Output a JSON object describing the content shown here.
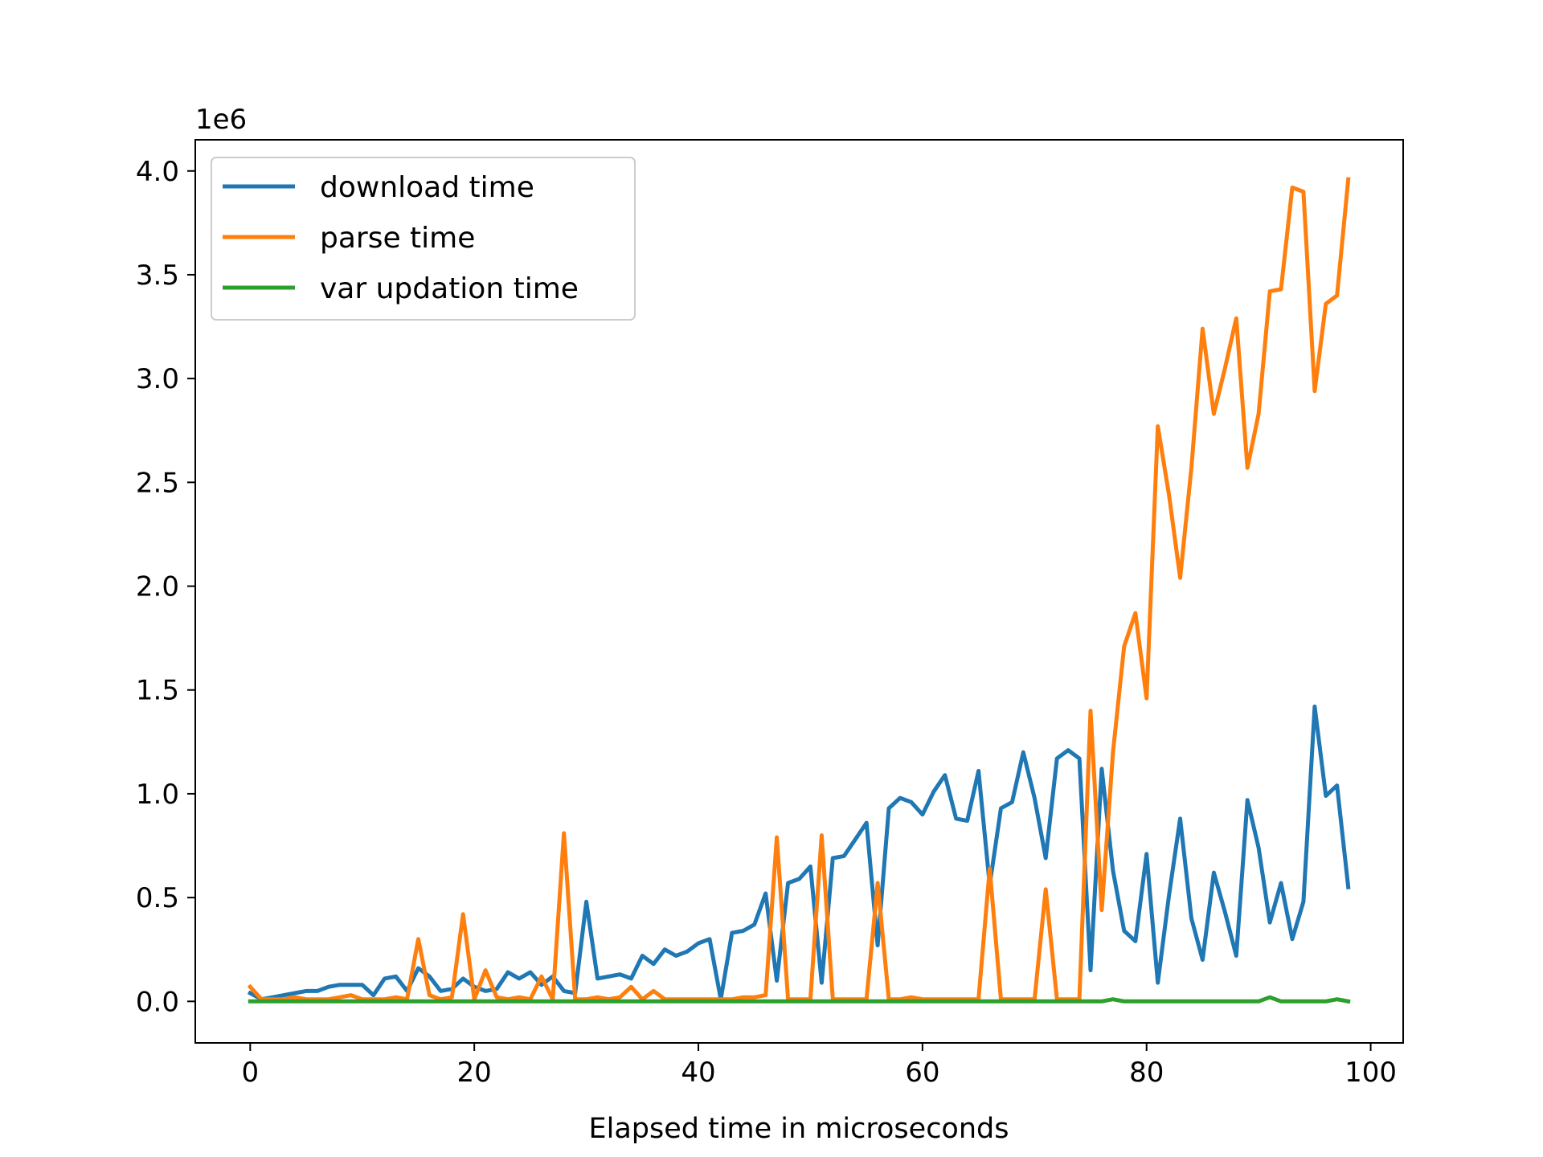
{
  "chart_data": {
    "type": "line",
    "title": "",
    "xlabel": "Elapsed time in microseconds",
    "ylabel": "",
    "y_offset_label": "1e6",
    "xlim": [
      -4.9,
      102.9
    ],
    "ylim": [
      -0.2,
      4.15
    ],
    "x_ticks": [
      0,
      20,
      40,
      60,
      80,
      100
    ],
    "x_tick_labels": [
      "0",
      "20",
      "40",
      "60",
      "80",
      "100"
    ],
    "y_ticks": [
      0.0,
      0.5,
      1.0,
      1.5,
      2.0,
      2.5,
      3.0,
      3.5,
      4.0
    ],
    "y_tick_labels": [
      "0.0",
      "0.5",
      "1.0",
      "1.5",
      "2.0",
      "2.5",
      "3.0",
      "3.5",
      "4.0"
    ],
    "grid": false,
    "legend_position": "top-left",
    "x": [
      0,
      1,
      2,
      3,
      4,
      5,
      6,
      7,
      8,
      9,
      10,
      11,
      12,
      13,
      14,
      15,
      16,
      17,
      18,
      19,
      20,
      21,
      22,
      23,
      24,
      25,
      26,
      27,
      28,
      29,
      30,
      31,
      32,
      33,
      34,
      35,
      36,
      37,
      38,
      39,
      40,
      41,
      42,
      43,
      44,
      45,
      46,
      47,
      48,
      49,
      50,
      51,
      52,
      53,
      54,
      55,
      56,
      57,
      58,
      59,
      60,
      61,
      62,
      63,
      64,
      65,
      66,
      67,
      68,
      69,
      70,
      71,
      72,
      73,
      74,
      75,
      76,
      77,
      78,
      79,
      80,
      81,
      82,
      83,
      84,
      85,
      86,
      87,
      88,
      89,
      90,
      91,
      92,
      93,
      94,
      95,
      96,
      97,
      98
    ],
    "series": [
      {
        "name": "download time",
        "color": "#1f77b4",
        "values": [
          0.04,
          0.01,
          0.02,
          0.03,
          0.04,
          0.05,
          0.05,
          0.07,
          0.08,
          0.08,
          0.08,
          0.03,
          0.11,
          0.12,
          0.05,
          0.16,
          0.12,
          0.05,
          0.06,
          0.11,
          0.07,
          0.05,
          0.06,
          0.14,
          0.11,
          0.14,
          0.08,
          0.12,
          0.05,
          0.04,
          0.48,
          0.11,
          0.12,
          0.13,
          0.11,
          0.22,
          0.18,
          0.25,
          0.22,
          0.24,
          0.28,
          0.3,
          0.01,
          0.33,
          0.34,
          0.37,
          0.52,
          0.1,
          0.57,
          0.59,
          0.65,
          0.09,
          0.69,
          0.7,
          0.78,
          0.86,
          0.27,
          0.93,
          0.98,
          0.96,
          0.9,
          1.01,
          1.09,
          0.88,
          0.87,
          1.11,
          0.56,
          0.93,
          0.96,
          1.2,
          0.98,
          0.69,
          1.17,
          1.21,
          1.17,
          0.15,
          1.12,
          0.63,
          0.34,
          0.29,
          0.71,
          0.09,
          0.51,
          0.88,
          0.4,
          0.2,
          0.62,
          0.43,
          0.22,
          0.97,
          0.74,
          0.38,
          0.57,
          0.3,
          0.48,
          1.42,
          0.99,
          1.04,
          0.55
        ]
      },
      {
        "name": "parse time",
        "color": "#ff7f0e",
        "values": [
          0.07,
          0.01,
          0.01,
          0.01,
          0.02,
          0.01,
          0.01,
          0.01,
          0.02,
          0.03,
          0.01,
          0.01,
          0.01,
          0.02,
          0.01,
          0.3,
          0.03,
          0.01,
          0.02,
          0.42,
          0.01,
          0.15,
          0.02,
          0.01,
          0.02,
          0.01,
          0.12,
          0.01,
          0.81,
          0.01,
          0.01,
          0.02,
          0.01,
          0.02,
          0.07,
          0.01,
          0.05,
          0.01,
          0.01,
          0.01,
          0.01,
          0.01,
          0.01,
          0.01,
          0.02,
          0.02,
          0.03,
          0.79,
          0.01,
          0.01,
          0.01,
          0.8,
          0.01,
          0.01,
          0.01,
          0.01,
          0.57,
          0.01,
          0.01,
          0.02,
          0.01,
          0.01,
          0.01,
          0.01,
          0.01,
          0.01,
          0.64,
          0.01,
          0.01,
          0.01,
          0.01,
          0.54,
          0.01,
          0.01,
          0.01,
          1.4,
          0.44,
          1.2,
          1.71,
          1.87,
          1.46,
          2.77,
          2.44,
          2.04,
          2.57,
          3.24,
          2.83,
          3.05,
          3.29,
          2.57,
          2.83,
          3.42,
          3.43,
          3.92,
          3.9,
          2.94,
          3.36,
          3.4,
          3.96
        ]
      },
      {
        "name": "var updation time",
        "color": "#2ca02c",
        "values": [
          0.0,
          0.0,
          0.0,
          0.0,
          0.0,
          0.0,
          0.0,
          0.0,
          0.0,
          0.0,
          0.0,
          0.0,
          0.0,
          0.0,
          0.0,
          0.0,
          0.0,
          0.0,
          0.0,
          0.0,
          0.0,
          0.0,
          0.0,
          0.0,
          0.0,
          0.0,
          0.0,
          0.0,
          0.0,
          0.0,
          0.0,
          0.0,
          0.0,
          0.0,
          0.0,
          0.0,
          0.0,
          0.0,
          0.0,
          0.0,
          0.0,
          0.0,
          0.0,
          0.0,
          0.0,
          0.0,
          0.0,
          0.0,
          0.0,
          0.0,
          0.0,
          0.0,
          0.0,
          0.0,
          0.0,
          0.0,
          0.0,
          0.0,
          0.0,
          0.0,
          0.0,
          0.0,
          0.0,
          0.0,
          0.0,
          0.0,
          0.0,
          0.0,
          0.0,
          0.0,
          0.0,
          0.0,
          0.0,
          0.0,
          0.0,
          0.0,
          0.0,
          0.01,
          0.0,
          0.0,
          0.0,
          0.0,
          0.0,
          0.0,
          0.0,
          0.0,
          0.0,
          0.0,
          0.0,
          0.0,
          0.0,
          0.02,
          0.0,
          0.0,
          0.0,
          0.0,
          0.0,
          0.01,
          0.0
        ]
      }
    ]
  }
}
